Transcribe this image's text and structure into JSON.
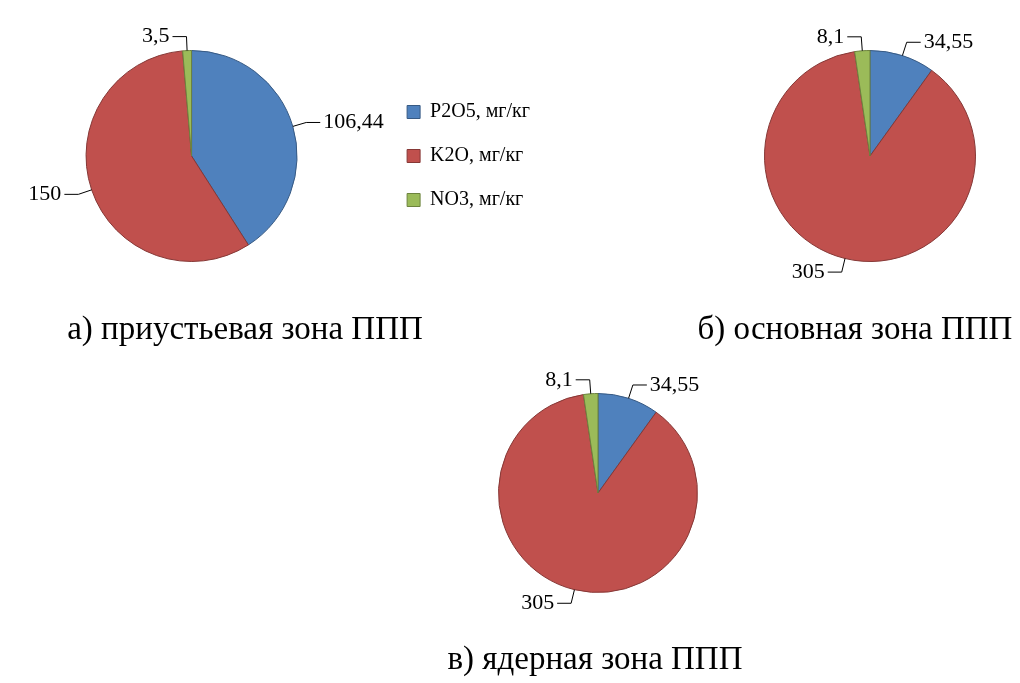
{
  "chart_data": [
    {
      "type": "pie",
      "title": "а) приустьевая зона ППП",
      "categories": [
        "P2O5, мг/кг",
        "K2O, мг/кг",
        "NO3, мг/кг"
      ],
      "values": [
        106.44,
        150,
        3.5
      ],
      "value_labels": [
        "106,44",
        "150",
        "3,5"
      ],
      "colors": [
        "#4f81bd",
        "#c0504d",
        "#9bbb59"
      ],
      "legend": "right"
    },
    {
      "type": "pie",
      "title": "б) основная зона ППП",
      "categories": [
        null,
        null,
        null
      ],
      "values": [
        34.55,
        305,
        8.1
      ],
      "value_labels": [
        "34,55",
        "305",
        "8,1"
      ],
      "colors": [
        "#4f81bd",
        "#c0504d",
        "#9bbb59"
      ]
    },
    {
      "type": "pie",
      "title": "в) ядерная зона ППП",
      "categories": [
        null,
        null,
        null
      ],
      "values": [
        34.55,
        305,
        8.1
      ],
      "value_labels": [
        "34,55",
        "305",
        "8,1"
      ],
      "colors": [
        "#4f81bd",
        "#c0504d",
        "#9bbb59"
      ]
    }
  ]
}
